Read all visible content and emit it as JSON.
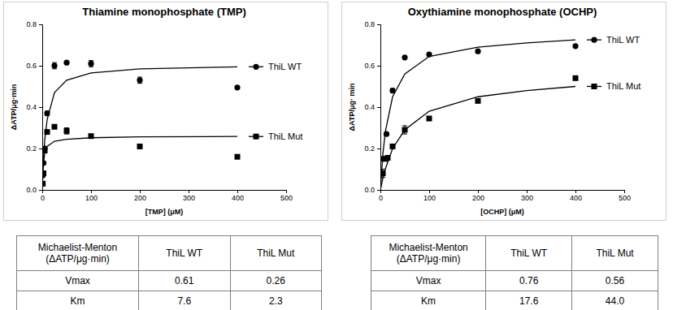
{
  "chart_data": [
    {
      "type": "scatter",
      "title": "Thiamine monophosphate (TMP)",
      "x_label": "[TMP] (μM)",
      "y_label": "ΔATP/μg·min",
      "xlim": [
        0,
        500
      ],
      "xticks": [
        0,
        100,
        200,
        300,
        400,
        500
      ],
      "ylim": [
        0,
        0.8
      ],
      "yticks": [
        {
          "value": 0,
          "label": "0.0"
        },
        0.2,
        0.4,
        0.6,
        0.8
      ],
      "series": [
        {
          "name": "ThiL WT",
          "type": "scatter",
          "marker": "circle",
          "color": "#000000",
          "x": [
            1,
            2.5,
            5,
            10,
            25,
            50,
            100,
            200,
            400
          ],
          "values": [
            0.07,
            0.13,
            0.2,
            0.37,
            0.6,
            0.615,
            0.61,
            0.53,
            0.495
          ],
          "errors": [
            0.005,
            0.005,
            0.01,
            0.01,
            0.015,
            0.005,
            0.015,
            0.015,
            0.005
          ]
        },
        {
          "type": "line",
          "color": "#000000",
          "x": [
            0,
            2.5,
            5,
            10,
            25,
            50,
            100,
            200,
            300,
            400
          ],
          "values": [
            0,
            0.15,
            0.24,
            0.34,
            0.47,
            0.53,
            0.565,
            0.585,
            0.59,
            0.595
          ]
        },
        {
          "name": "ThiL Mut",
          "type": "scatter",
          "marker": "square",
          "color": "#000000",
          "x": [
            1,
            2.5,
            5,
            10,
            25,
            50,
            100,
            200,
            400
          ],
          "values": [
            0.03,
            0.08,
            0.19,
            0.28,
            0.305,
            0.285,
            0.26,
            0.21,
            0.16
          ],
          "errors": [
            0.005,
            0.005,
            0.01,
            0.01,
            0.005,
            0.015,
            0.005,
            0.005,
            0.005
          ]
        },
        {
          "type": "line",
          "color": "#000000",
          "x": [
            0,
            1,
            2.5,
            5,
            10,
            25,
            50,
            100,
            200,
            400
          ],
          "values": [
            0,
            0.08,
            0.13,
            0.175,
            0.21,
            0.235,
            0.245,
            0.252,
            0.256,
            0.258
          ]
        }
      ]
    },
    {
      "type": "scatter",
      "title": "Oxythiamine monophosphate (OCHP)",
      "x_label": "[OCHP] (μM)",
      "y_label": "ΔATP/μg· min",
      "xlim": [
        0,
        500
      ],
      "xticks": [
        0,
        100,
        200,
        300,
        400,
        500
      ],
      "ylim": [
        0,
        0.8
      ],
      "yticks": [
        {
          "value": 0,
          "label": "0.0"
        },
        0.2,
        0.4,
        0.6,
        0.8
      ],
      "series": [
        {
          "name": "ThiL WT",
          "type": "scatter",
          "marker": "circle",
          "color": "#000000",
          "x": [
            5,
            12.5,
            25,
            50,
            100,
            200,
            400
          ],
          "values": [
            0.15,
            0.27,
            0.48,
            0.64,
            0.655,
            0.67,
            0.695
          ],
          "errors": [
            0.005,
            0.005,
            0.01,
            0.005,
            0.005,
            0.005,
            0.005
          ]
        },
        {
          "type": "line",
          "color": "#000000",
          "x": [
            0,
            5,
            10,
            25,
            50,
            100,
            200,
            300,
            400
          ],
          "values": [
            0,
            0.17,
            0.28,
            0.45,
            0.56,
            0.645,
            0.69,
            0.71,
            0.725
          ]
        },
        {
          "name": "ThiL Mut",
          "type": "scatter",
          "marker": "square",
          "color": "#000000",
          "x": [
            5,
            10,
            15,
            25,
            50,
            100,
            200,
            400
          ],
          "values": [
            0.08,
            0.15,
            0.155,
            0.21,
            0.29,
            0.345,
            0.43,
            0.54
          ],
          "errors": [
            0.02,
            0.005,
            0.005,
            0.005,
            0.02,
            0.005,
            0.005,
            0.005
          ]
        },
        {
          "type": "line",
          "color": "#000000",
          "x": [
            0,
            5,
            10,
            25,
            50,
            100,
            200,
            300,
            400
          ],
          "values": [
            0,
            0.055,
            0.1,
            0.2,
            0.29,
            0.38,
            0.45,
            0.48,
            0.5
          ]
        }
      ]
    }
  ],
  "tables": [
    {
      "header": [
        [
          "Michaelist-Menton",
          "(ΔATP/μg·min)"
        ],
        "ThiL WT",
        "ThiL Mut"
      ],
      "rows": [
        [
          "Vmax",
          "0.61",
          "0.26"
        ],
        [
          "Km",
          "7.6",
          "2.3"
        ]
      ]
    },
    {
      "header": [
        [
          "Michaelist-Menton",
          "(ΔATP/μg·min)"
        ],
        "ThiL WT",
        "ThiL Mut"
      ],
      "rows": [
        [
          "Vmax",
          "0.76",
          "0.56"
        ],
        [
          "Km",
          "17.6",
          "44.0"
        ]
      ]
    }
  ]
}
